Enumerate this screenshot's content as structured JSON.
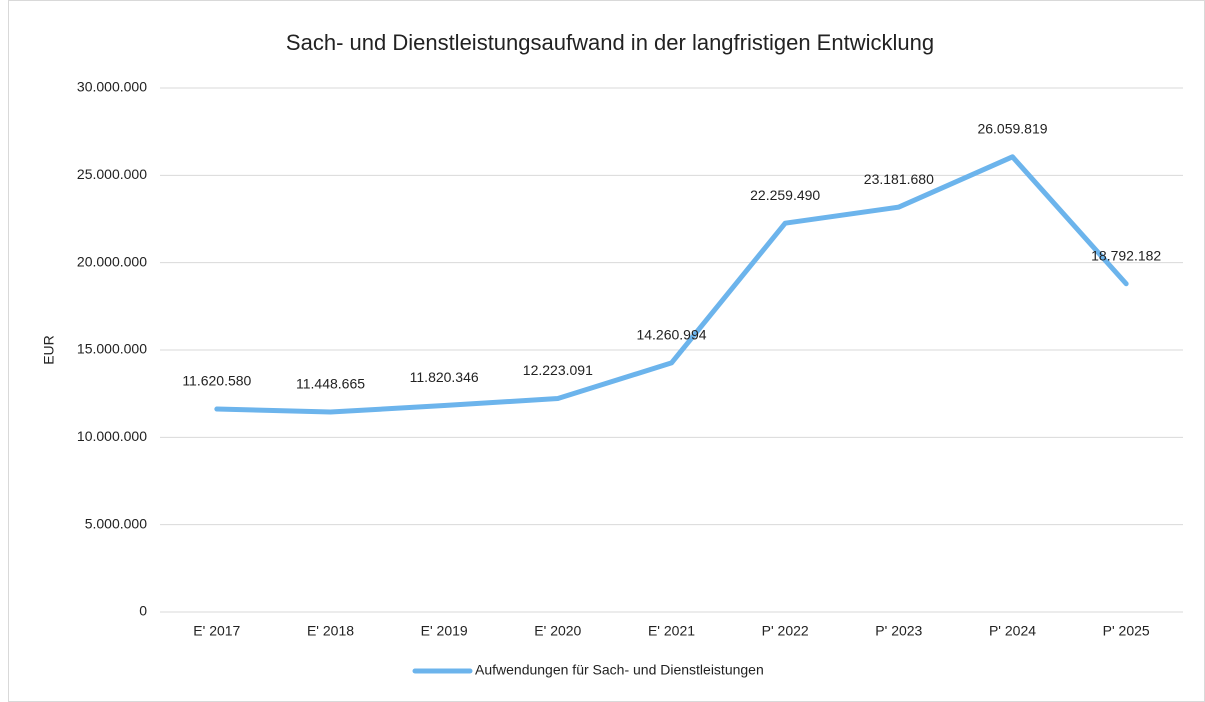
{
  "chart_data": {
    "type": "line",
    "title": "Sach- und Dienstleistungsaufwand in der langfristigen Entwicklung",
    "y_label": "EUR",
    "categories": [
      "E' 2017",
      "E' 2018",
      "E' 2019",
      "E' 2020",
      "E' 2021",
      "P' 2022",
      "P' 2023",
      "P' 2024",
      "P' 2025"
    ],
    "series": [
      {
        "name": "Aufwendungen für Sach- und Dienstleistungen",
        "color": "#6cb4ec",
        "values": [
          11620580,
          11448665,
          11820346,
          12223091,
          14260994,
          22259490,
          23181680,
          26059819,
          18792182
        ],
        "value_labels": [
          "11.620.580",
          "11.448.665",
          "11.820.346",
          "12.223.091",
          "14.260.994",
          "22.259.490",
          "23.181.680",
          "26.059.819",
          "18.792.182"
        ]
      }
    ],
    "ylim": [
      0,
      30000000
    ],
    "yticks": [
      0,
      {
        "value": 5000000,
        "label": "5.000.000"
      },
      {
        "value": 10000000,
        "label": "10.000.000"
      },
      {
        "value": 15000000,
        "label": "15.000.000"
      },
      {
        "value": 20000000,
        "label": "20.000.000"
      },
      {
        "value": 25000000,
        "label": "25.000.000"
      },
      {
        "value": 30000000,
        "label": "30.000.000"
      }
    ],
    "grid": true,
    "legend": "bottom"
  }
}
